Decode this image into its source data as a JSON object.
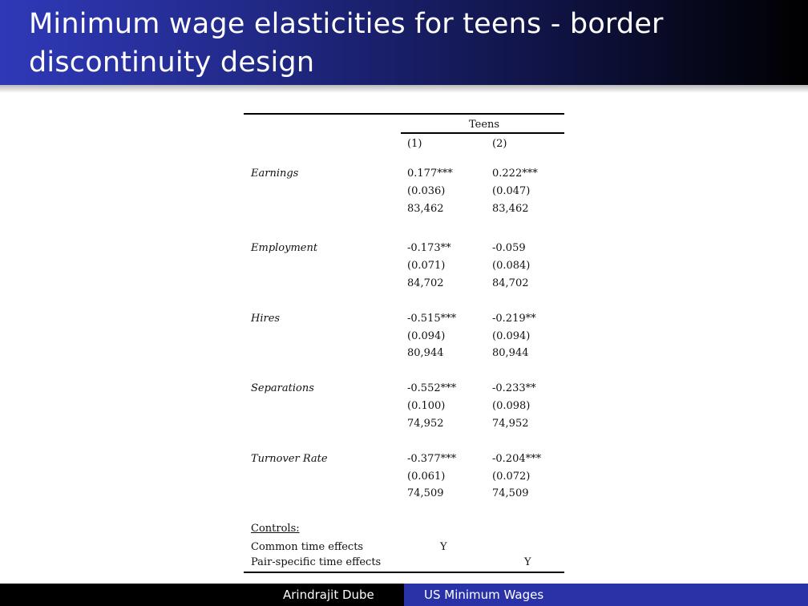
{
  "slide": {
    "title": "Minimum wage elasticities for teens - border discontinuity design"
  },
  "table": {
    "group_header": "Teens",
    "columns": [
      "(1)",
      "(2)"
    ],
    "rows": [
      {
        "label": "Earnings",
        "coef": [
          "0.177***",
          "0.222***"
        ],
        "se": [
          "(0.036)",
          "(0.047)"
        ],
        "n": [
          "83,462",
          "83,462"
        ]
      },
      {
        "label": "Employment",
        "coef": [
          "-0.173**",
          "-0.059"
        ],
        "se": [
          "(0.071)",
          "(0.084)"
        ],
        "n": [
          "84,702",
          "84,702"
        ]
      },
      {
        "label": "Hires",
        "coef": [
          "-0.515***",
          "-0.219**"
        ],
        "se": [
          "(0.094)",
          "(0.094)"
        ],
        "n": [
          "80,944",
          "80,944"
        ]
      },
      {
        "label": "Separations",
        "coef": [
          "-0.552***",
          "-0.233**"
        ],
        "se": [
          "(0.100)",
          "(0.098)"
        ],
        "n": [
          "74,952",
          "74,952"
        ]
      },
      {
        "label": "Turnover Rate",
        "coef": [
          "-0.377***",
          "-0.204***"
        ],
        "se": [
          "(0.061)",
          "(0.072)"
        ],
        "n": [
          "74,509",
          "74,509"
        ]
      }
    ],
    "controls_heading": "Controls:",
    "controls": [
      {
        "label": "Common time effects",
        "marks": [
          "Y",
          ""
        ]
      },
      {
        "label": "Pair-specific time effects",
        "marks": [
          "",
          "Y"
        ]
      }
    ]
  },
  "footer": {
    "author": "Arindrajit Dube",
    "talk_title": "US Minimum Wages"
  }
}
